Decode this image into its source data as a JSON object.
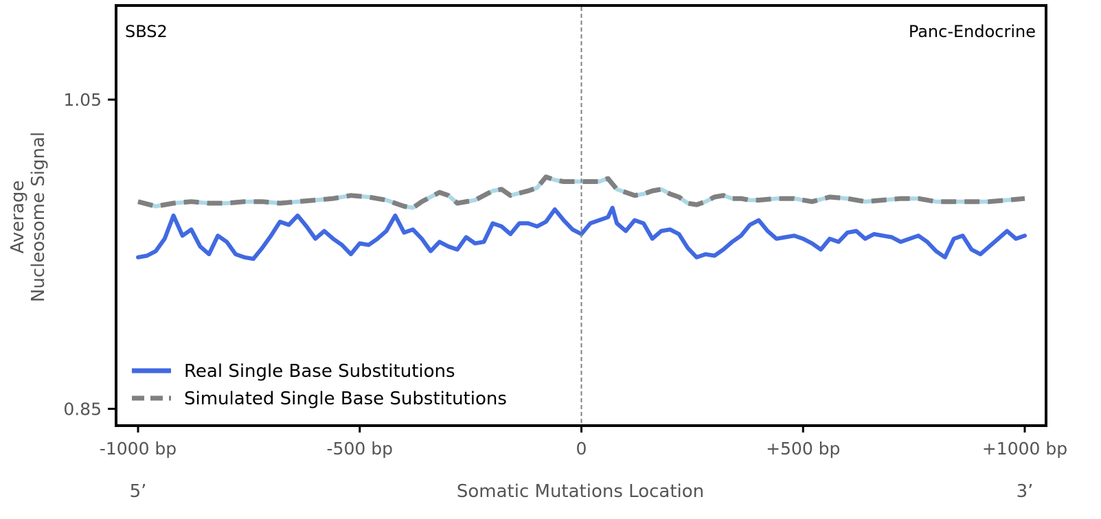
{
  "chart_data": {
    "type": "line",
    "signature": "SBS2",
    "tissue": "Panc-Endocrine",
    "xlabel": "Somatic Mutations Location",
    "ylabel": [
      "Average",
      "Nucleosome Signal"
    ],
    "end_5_label": "5’",
    "end_3_label": "3’",
    "xlim": [
      -1000,
      1000
    ],
    "ylim": [
      0.84,
      1.11
    ],
    "x_ticks": [
      {
        "value": -1000,
        "label": "-1000 bp"
      },
      {
        "value": -500,
        "label": "-500 bp"
      },
      {
        "value": 0,
        "label": "0"
      },
      {
        "value": 500,
        "label": "+500 bp"
      },
      {
        "value": 1000,
        "label": "+1000 bp"
      }
    ],
    "y_ticks": [
      {
        "value": 0.85,
        "label": "0.85"
      },
      {
        "value": 1.05,
        "label": "1.05"
      }
    ],
    "center_line_x": 0,
    "legend": {
      "placement": "lower-left"
    },
    "series": [
      {
        "name": "Real Single Base Substitutions",
        "color": "#4169e1",
        "style": "solid",
        "x": [
          -1000,
          -980,
          -960,
          -940,
          -920,
          -900,
          -880,
          -860,
          -840,
          -820,
          -800,
          -780,
          -760,
          -740,
          -720,
          -700,
          -680,
          -660,
          -640,
          -620,
          -600,
          -580,
          -560,
          -540,
          -520,
          -500,
          -480,
          -460,
          -440,
          -420,
          -400,
          -380,
          -360,
          -340,
          -320,
          -300,
          -280,
          -260,
          -240,
          -220,
          -200,
          -180,
          -160,
          -140,
          -120,
          -100,
          -80,
          -60,
          -40,
          -20,
          0,
          20,
          40,
          60,
          70,
          80,
          100,
          120,
          140,
          160,
          180,
          200,
          220,
          240,
          260,
          280,
          300,
          320,
          340,
          360,
          380,
          400,
          420,
          440,
          460,
          480,
          500,
          520,
          540,
          560,
          580,
          600,
          620,
          640,
          660,
          680,
          700,
          720,
          740,
          760,
          780,
          800,
          820,
          840,
          860,
          880,
          900,
          920,
          940,
          960,
          980,
          1000
        ],
        "values": [
          0.948,
          0.949,
          0.952,
          0.96,
          0.975,
          0.962,
          0.966,
          0.955,
          0.95,
          0.962,
          0.958,
          0.95,
          0.948,
          0.947,
          0.954,
          0.962,
          0.971,
          0.969,
          0.975,
          0.968,
          0.96,
          0.965,
          0.96,
          0.956,
          0.95,
          0.957,
          0.956,
          0.96,
          0.965,
          0.975,
          0.964,
          0.966,
          0.96,
          0.952,
          0.958,
          0.955,
          0.953,
          0.961,
          0.957,
          0.958,
          0.97,
          0.968,
          0.963,
          0.97,
          0.97,
          0.968,
          0.971,
          0.979,
          0.972,
          0.966,
          0.963,
          0.97,
          0.972,
          0.974,
          0.98,
          0.97,
          0.965,
          0.972,
          0.97,
          0.96,
          0.965,
          0.966,
          0.963,
          0.954,
          0.948,
          0.95,
          0.949,
          0.953,
          0.958,
          0.962,
          0.969,
          0.972,
          0.965,
          0.96,
          0.961,
          0.962,
          0.96,
          0.957,
          0.953,
          0.96,
          0.958,
          0.964,
          0.965,
          0.96,
          0.963,
          0.962,
          0.961,
          0.958,
          0.96,
          0.962,
          0.958,
          0.952,
          0.948,
          0.96,
          0.962,
          0.953,
          0.95,
          0.955,
          0.96,
          0.965,
          0.96,
          0.962
        ]
      },
      {
        "name": "Simulated Single Base Substitutions",
        "color": "#808080",
        "dash_color": "#add8e6",
        "style": "dashed",
        "x": [
          -1000,
          -960,
          -920,
          -880,
          -840,
          -800,
          -760,
          -720,
          -680,
          -640,
          -600,
          -560,
          -520,
          -480,
          -440,
          -400,
          -380,
          -360,
          -320,
          -300,
          -280,
          -240,
          -200,
          -180,
          -160,
          -120,
          -100,
          -80,
          -60,
          -40,
          -20,
          0,
          20,
          40,
          60,
          80,
          100,
          120,
          140,
          160,
          180,
          200,
          220,
          240,
          260,
          280,
          300,
          320,
          340,
          360,
          380,
          400,
          440,
          480,
          520,
          560,
          600,
          640,
          680,
          720,
          760,
          800,
          840,
          880,
          920,
          960,
          1000
        ],
        "values": [
          0.984,
          0.981,
          0.983,
          0.984,
          0.983,
          0.983,
          0.984,
          0.984,
          0.983,
          0.984,
          0.985,
          0.986,
          0.988,
          0.987,
          0.985,
          0.981,
          0.98,
          0.984,
          0.99,
          0.988,
          0.983,
          0.985,
          0.991,
          0.992,
          0.988,
          0.991,
          0.993,
          1.0,
          0.998,
          0.997,
          0.997,
          0.997,
          0.997,
          0.997,
          0.999,
          0.992,
          0.99,
          0.988,
          0.989,
          0.991,
          0.992,
          0.989,
          0.987,
          0.983,
          0.982,
          0.984,
          0.987,
          0.988,
          0.986,
          0.986,
          0.985,
          0.985,
          0.986,
          0.986,
          0.984,
          0.987,
          0.986,
          0.984,
          0.985,
          0.986,
          0.986,
          0.984,
          0.984,
          0.984,
          0.984,
          0.985,
          0.986
        ]
      }
    ]
  }
}
